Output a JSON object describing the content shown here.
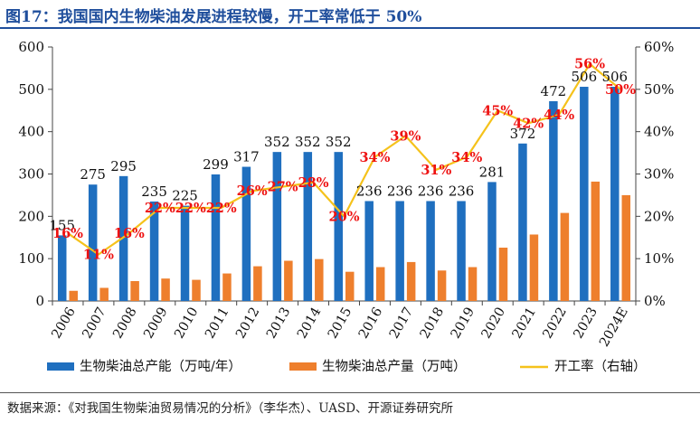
{
  "header": {
    "title": "图17：我国国内生物柴油发展进程较慢，开工率常低于 50%"
  },
  "footer": {
    "source": "数据来源：《对我国生物柴油贸易情况的分析》（李华杰）、UASD、开源证券研究所"
  },
  "colors": {
    "capacity": "#1f6fbf",
    "production": "#ee7f2d",
    "utilization": "#f5c21b",
    "util_label": "#ee1111",
    "title": "#1f4e9c"
  },
  "chart_data": {
    "type": "bar",
    "categories": [
      "2006",
      "2007",
      "2008",
      "2009",
      "2010",
      "2011",
      "2012",
      "2013",
      "2014",
      "2015",
      "2016",
      "2017",
      "2018",
      "2019",
      "2020",
      "2021",
      "2022",
      "2023",
      "2024E"
    ],
    "series": [
      {
        "name": "生物柴油总产能（万吨/年）",
        "type": "bar",
        "axis": "left",
        "values": [
          155,
          275,
          295,
          235,
          225,
          299,
          317,
          352,
          352,
          352,
          236,
          236,
          236,
          236,
          281,
          372,
          472,
          506,
          506
        ],
        "labels": [
          "155",
          "275",
          "295",
          "235",
          "225",
          "299",
          "317",
          "352",
          "352",
          "352",
          "236",
          "236",
          "236",
          "236",
          "281",
          "372",
          "472",
          "506",
          "506"
        ]
      },
      {
        "name": "生物柴油总产量（万吨）",
        "type": "bar",
        "axis": "left",
        "values": [
          24,
          31,
          47,
          53,
          50,
          65,
          82,
          95,
          99,
          69,
          80,
          92,
          72,
          80,
          126,
          157,
          208,
          282,
          250
        ]
      },
      {
        "name": "开工率（右轴）",
        "type": "line",
        "axis": "right",
        "values": [
          16,
          11,
          16,
          22,
          22,
          22,
          26,
          27,
          28,
          20,
          34,
          39,
          31,
          34,
          45,
          42,
          44,
          56,
          50
        ],
        "labels": [
          "16%",
          "11%",
          "16%",
          "22%",
          "22%",
          "22%",
          "26%",
          "27%",
          "28%",
          "20%",
          "34%",
          "39%",
          "31%",
          "34%",
          "45%",
          "42%",
          "44%",
          "56%",
          "50%"
        ]
      }
    ],
    "y_left": {
      "min": 0,
      "max": 600,
      "ticks": [
        "0",
        "100",
        "200",
        "300",
        "400",
        "500",
        "600"
      ]
    },
    "y_right": {
      "min": 0,
      "max": 60,
      "ticks": [
        "0%",
        "10%",
        "20%",
        "30%",
        "40%",
        "50%",
        "60%"
      ]
    },
    "grid": false,
    "legend_position": "bottom"
  }
}
